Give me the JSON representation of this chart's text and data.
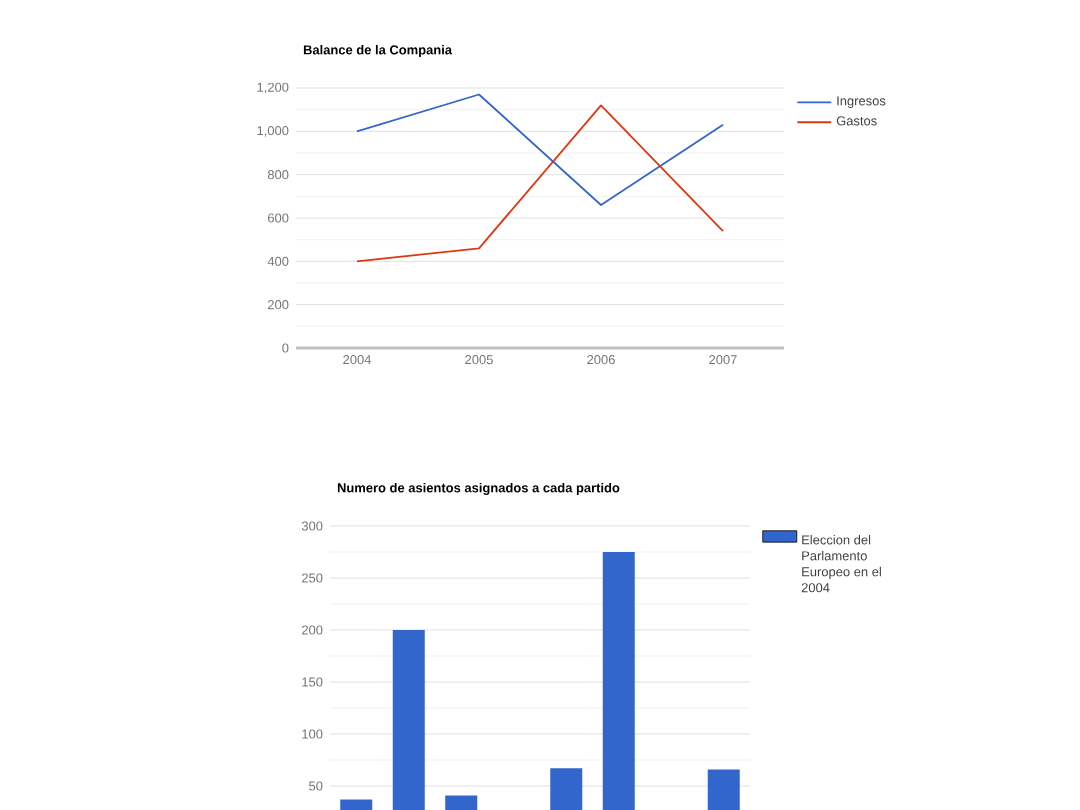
{
  "chart_data": [
    {
      "type": "line",
      "title": "Balance de la Compania",
      "categories": [
        "2004",
        "2005",
        "2006",
        "2007"
      ],
      "series": [
        {
          "name": "Ingresos",
          "color": "#3366cc",
          "values": [
            1000,
            1170,
            660,
            1030
          ]
        },
        {
          "name": "Gastos",
          "color": "#dc3912",
          "values": [
            400,
            460,
            1120,
            540
          ]
        }
      ],
      "ylim": [
        0,
        1200
      ],
      "yticks": [
        0,
        200,
        400,
        600,
        800,
        {
          "value": 1000,
          "label": "1,000"
        },
        {
          "value": 1200,
          "label": "1,200"
        }
      ],
      "grid": "y",
      "legend": "top right"
    },
    {
      "type": "bar",
      "title": "Numero de asientos asignados a cada partido",
      "categories": [
        null,
        null,
        null,
        null,
        null,
        null,
        null,
        null
      ],
      "series": [
        {
          "name": "Eleccion del Parlamento Europeo en el 2004",
          "color": "#3366cc",
          "values": [
            37,
            200,
            41,
            null,
            67,
            275,
            null,
            66
          ]
        }
      ],
      "ylim": [
        0,
        300
      ],
      "yticks": [
        50,
        100,
        150,
        200,
        250,
        300
      ],
      "grid": "y",
      "legend": "top right",
      "tick_labels": "y"
    }
  ]
}
